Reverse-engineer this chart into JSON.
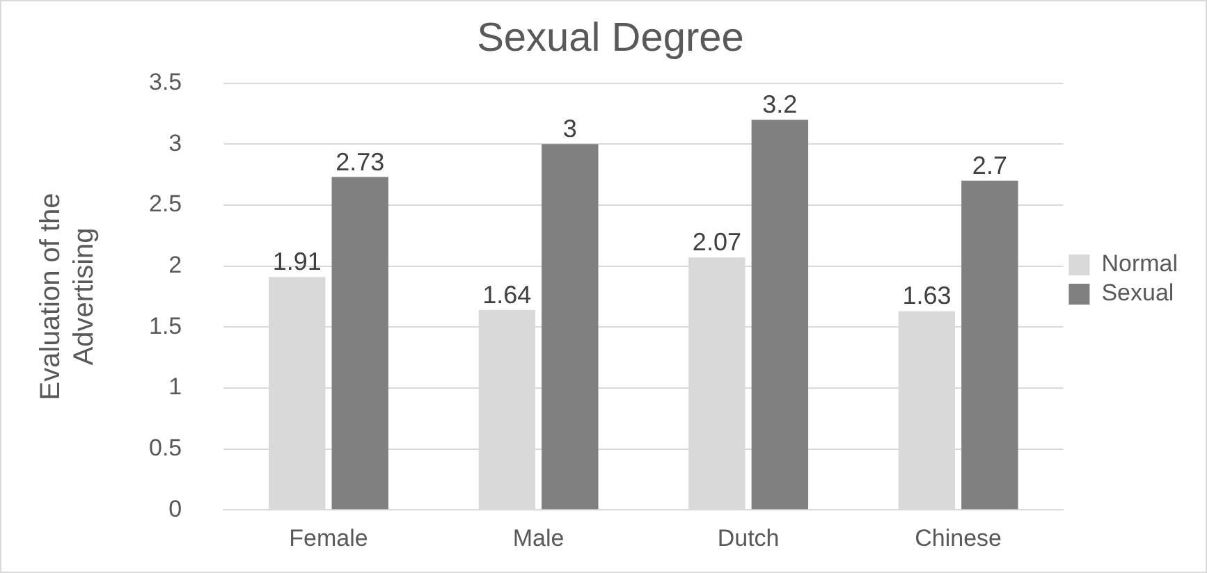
{
  "chart_data": {
    "type": "bar",
    "title": "Sexual Degree",
    "ylabel": "Evaluation of the Advertising",
    "categories": [
      "Female",
      "Male",
      "Dutch",
      "Chinese"
    ],
    "series": [
      {
        "name": "Normal",
        "color": "#d9d9d9",
        "values": [
          1.91,
          1.64,
          2.07,
          1.63
        ]
      },
      {
        "name": "Sexual",
        "color": "#808080",
        "values": [
          2.73,
          3,
          3.2,
          2.7
        ]
      }
    ],
    "ylim": [
      0,
      3.5
    ],
    "yticks": [
      0,
      0.5,
      1,
      1.5,
      2,
      2.5,
      3,
      3.5
    ],
    "grid": "y",
    "legend": "right",
    "data_labels": true
  }
}
